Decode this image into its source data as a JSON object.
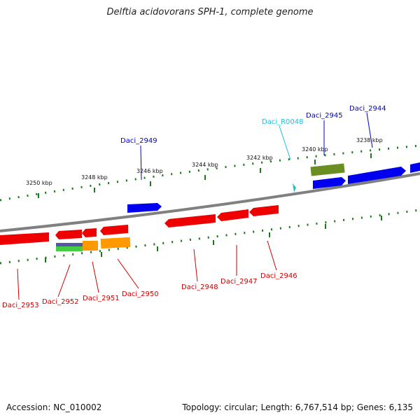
{
  "title": "Delftia acidovorans SPH-1, complete genome",
  "footer": {
    "accession": "Accession: NC_010002",
    "summary": "Topology: circular; Length: 6,767,514 bp; Genes: 6,135"
  },
  "scale_labels": [
    "3250 kbp",
    "3248 kbp",
    "3246 kbp",
    "3244 kbp",
    "3242 kbp",
    "3240 kbp",
    "3238 kbp"
  ],
  "gene_labels_top": [
    {
      "name": "Daci_2949",
      "color": "#0000cc"
    },
    {
      "name": "Daci_R0048",
      "color": "#22bbdd"
    },
    {
      "name": "Daci_2945",
      "color": "#0000cc"
    },
    {
      "name": "Daci_2944",
      "color": "#0000cc"
    }
  ],
  "gene_labels_bottom": [
    {
      "name": "Daci_2953",
      "color": "#cc0000"
    },
    {
      "name": "Daci_2952",
      "color": "#cc0000"
    },
    {
      "name": "Daci_2951",
      "color": "#cc0000"
    },
    {
      "name": "Daci_2950",
      "color": "#cc0000"
    },
    {
      "name": "Daci_2948",
      "color": "#cc0000"
    },
    {
      "name": "Daci_2947",
      "color": "#cc0000"
    },
    {
      "name": "Daci_2946",
      "color": "#cc0000"
    }
  ],
  "colors": {
    "forward_gene": "#0000ee",
    "reverse_gene": "#ee0000",
    "rna_gene": "#22bbdd",
    "olive_feature": "#6b8e23",
    "orange_feature": "#ff9900",
    "tick_green": "#1a7a1a",
    "backbone": "#808080"
  }
}
